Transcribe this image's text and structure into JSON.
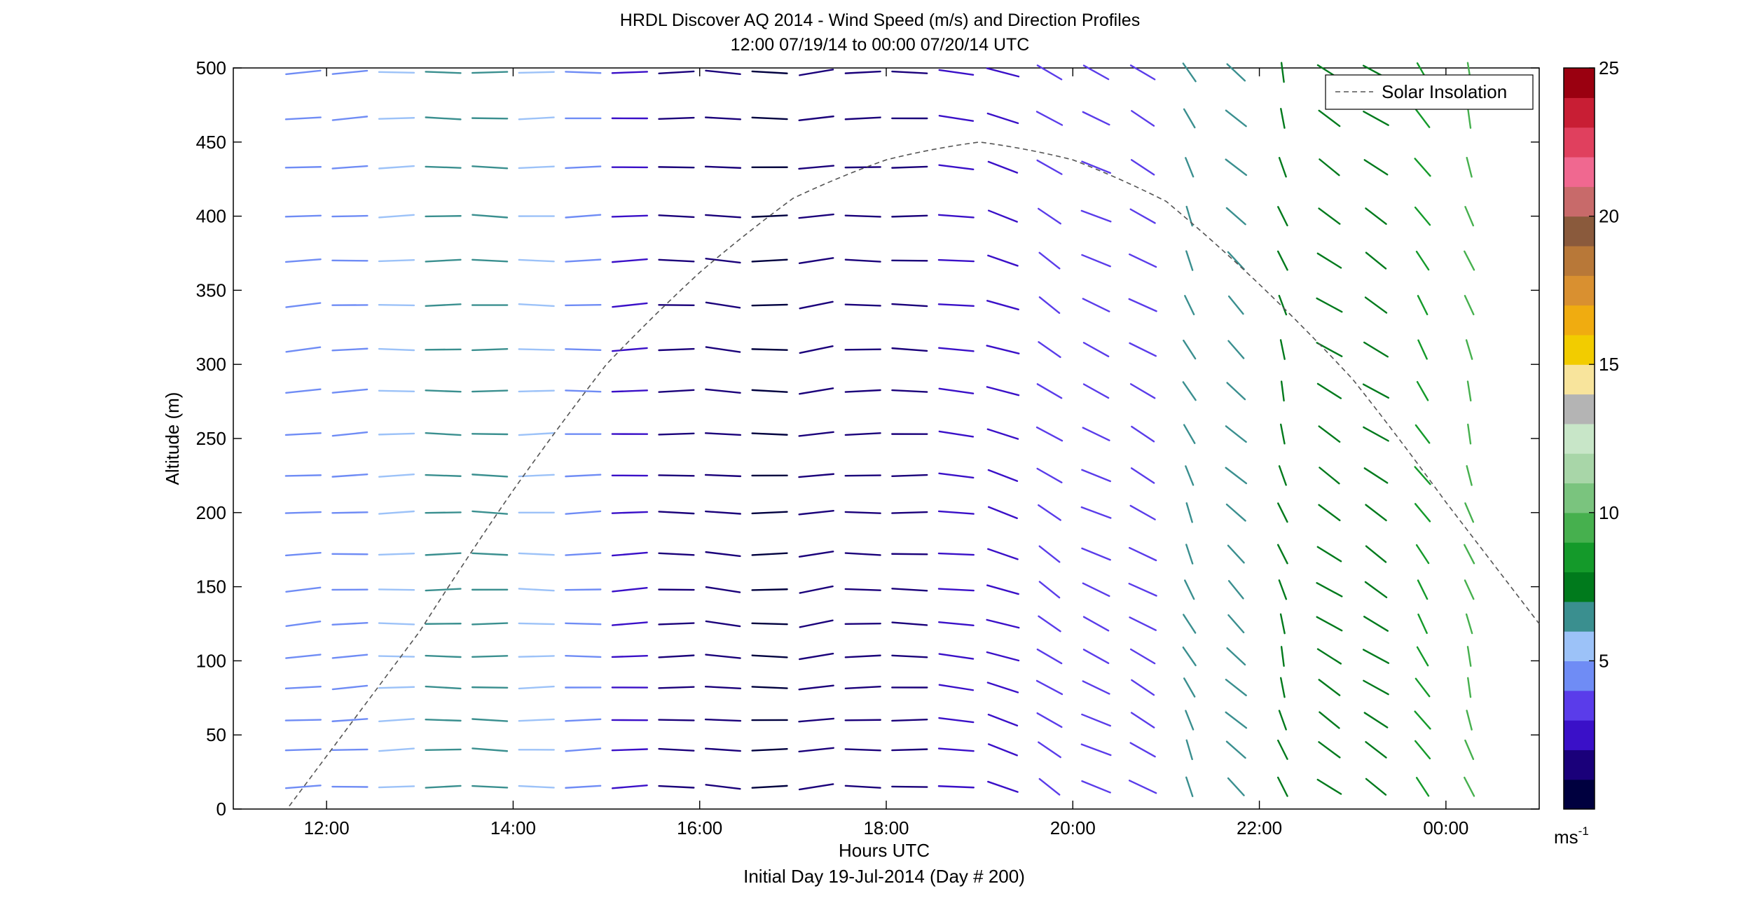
{
  "chart_data": {
    "type": "wind-barb-profile",
    "title": "HRDL Discover AQ 2014 - Wind Speed (m/s) and Direction Profiles",
    "subtitle": "12:00 07/19/14 to 00:00 07/20/14  UTC",
    "xlabel": "Hours UTC",
    "footer": "Initial Day 19-Jul-2014 (Day # 200)",
    "ylabel": "Altitude (m)",
    "xlim": [
      11.0,
      25.0
    ],
    "ylim": [
      0,
      500
    ],
    "x_ticks": [
      12,
      14,
      16,
      18,
      20,
      22,
      24
    ],
    "x_tick_labels": [
      "12:00",
      "14:00",
      "16:00",
      "18:00",
      "20:00",
      "22:00",
      "00:00"
    ],
    "y_ticks": [
      0,
      50,
      100,
      150,
      200,
      250,
      300,
      350,
      400,
      450,
      500
    ],
    "y_tick_labels": [
      "0",
      "50",
      "100",
      "150",
      "200",
      "250",
      "300",
      "350",
      "400",
      "450",
      "500"
    ],
    "legend": {
      "label": "Solar Insolation",
      "position": "top-right",
      "style": "dashed"
    },
    "colorbar": {
      "range": [
        0,
        25
      ],
      "ticks": [
        5,
        10,
        15,
        20,
        25
      ],
      "tick_labels": [
        "5",
        "10",
        "15",
        "20",
        "25"
      ],
      "unit_label": "ms",
      "unit_exponent": "-1",
      "colors": [
        "#00003f",
        "#1a007a",
        "#3a10c8",
        "#5a3cea",
        "#6f8cf5",
        "#9cc2f8",
        "#3a8f8f",
        "#007a1c",
        "#149a2a",
        "#46b04e",
        "#7ac47e",
        "#a8d6a8",
        "#c8e6c8",
        "#b4b4b4",
        "#f8e49c",
        "#f2cc00",
        "#f0ac10",
        "#d99030",
        "#b87838",
        "#8a5a3c",
        "#c86a6a",
        "#f06890",
        "#e0405e",
        "#c81e34",
        "#9a0010"
      ]
    },
    "solar_insolation": {
      "peak_time": 19.05,
      "peak_altitude": 450,
      "x": [
        11.6,
        13.0,
        14.0,
        15.0,
        16.0,
        17.0,
        18.0,
        19.0,
        20.0,
        21.0,
        22.0,
        23.0,
        24.0,
        25.0
      ],
      "y": [
        2,
        120,
        215,
        300,
        362,
        412,
        438,
        450,
        438,
        410,
        354,
        290,
        207,
        125
      ]
    },
    "altitudes": [
      15,
      40,
      60,
      82,
      103,
      125,
      148,
      172,
      200,
      225,
      253,
      282,
      310,
      340,
      370,
      400,
      433,
      466,
      497
    ],
    "wind_columns": [
      {
        "t": 11.75,
        "dir": 262,
        "spd": 4.5
      },
      {
        "t": 12.25,
        "dir": 265,
        "spd": 4.8
      },
      {
        "t": 12.75,
        "dir": 268,
        "spd": 5.6
      },
      {
        "t": 13.25,
        "dir": 270,
        "spd": 6.2
      },
      {
        "t": 13.75,
        "dir": 272,
        "spd": 6.9
      },
      {
        "t": 14.25,
        "dir": 270,
        "spd": 5.4
      },
      {
        "t": 14.75,
        "dir": 268,
        "spd": 4.1
      },
      {
        "t": 15.25,
        "dir": 265,
        "spd": 2.6
      },
      {
        "t": 15.75,
        "dir": 270,
        "spd": 1.8
      },
      {
        "t": 16.25,
        "dir": 280,
        "spd": 1.2
      },
      {
        "t": 16.75,
        "dir": 270,
        "spd": 0.8
      },
      {
        "t": 17.25,
        "dir": 255,
        "spd": 1.2
      },
      {
        "t": 17.75,
        "dir": 270,
        "spd": 1.6
      },
      {
        "t": 18.25,
        "dir": 272,
        "spd": 1.9
      },
      {
        "t": 18.75,
        "dir": 280,
        "spd": 2.2
      },
      {
        "t": 19.25,
        "dir": 300,
        "spd": 2.8
      },
      {
        "t": 19.75,
        "dir": 320,
        "spd": 3.0
      },
      {
        "t": 20.25,
        "dir": 310,
        "spd": 3.2
      },
      {
        "t": 20.75,
        "dir": 315,
        "spd": 3.4
      },
      {
        "t": 21.25,
        "dir": 345,
        "spd": 6.0
      },
      {
        "t": 21.75,
        "dir": 330,
        "spd": 6.8
      },
      {
        "t": 22.25,
        "dir": 350,
        "spd": 7.8
      },
      {
        "t": 22.75,
        "dir": 320,
        "spd": 7.2
      },
      {
        "t": 23.25,
        "dir": 320,
        "spd": 7.9
      },
      {
        "t": 23.75,
        "dir": 340,
        "spd": 8.6
      },
      {
        "t": 24.25,
        "dir": 350,
        "spd": 9.5
      }
    ]
  }
}
